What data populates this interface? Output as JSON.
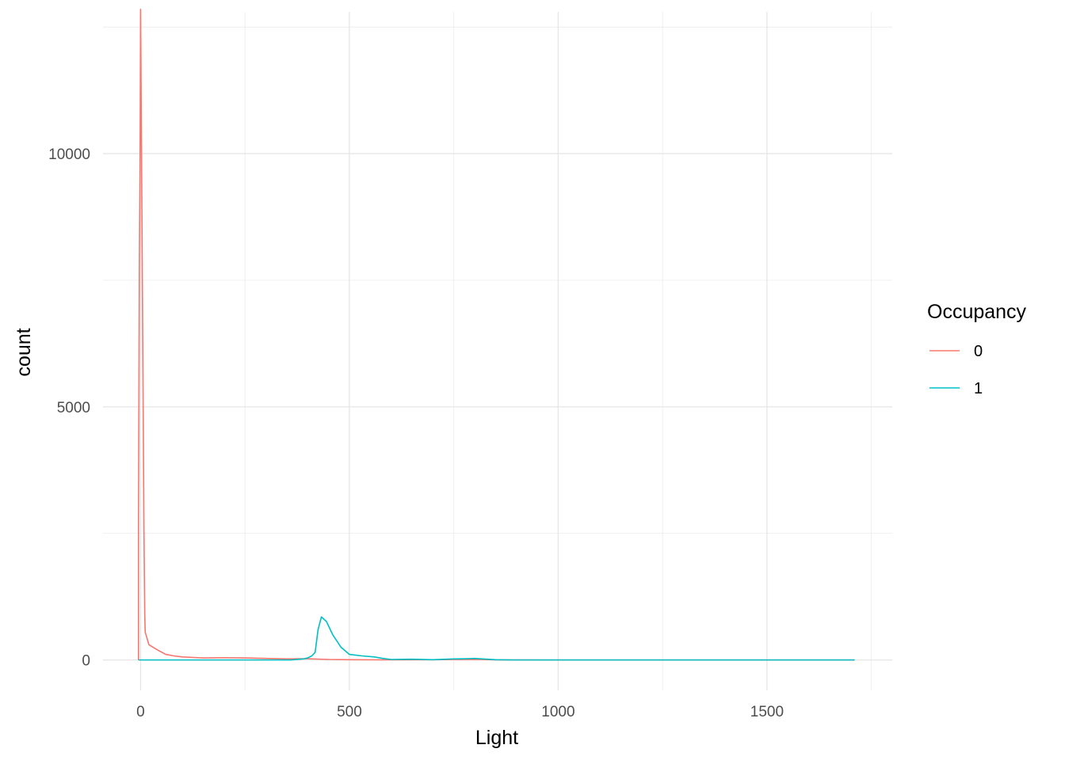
{
  "chart_data": {
    "type": "line",
    "title": "",
    "xlabel": "Light",
    "ylabel": "count",
    "xlim": [
      -90,
      1800
    ],
    "ylim": [
      -600,
      12800
    ],
    "x_ticks": [
      0,
      500,
      1000,
      1500
    ],
    "y_ticks": [
      0,
      5000,
      10000
    ],
    "grid": true,
    "legend": {
      "title": "Occupancy",
      "position": "right"
    },
    "series": [
      {
        "name": "0",
        "color": "#F8766D",
        "points": [
          [
            -5,
            0
          ],
          [
            -5,
            2600
          ],
          [
            -4,
            5100
          ],
          [
            -3,
            7700
          ],
          [
            -1,
            10300
          ],
          [
            0,
            12850
          ],
          [
            2,
            10300
          ],
          [
            4,
            7700
          ],
          [
            6,
            5200
          ],
          [
            8,
            2600
          ],
          [
            10,
            900
          ],
          [
            11,
            550
          ],
          [
            20,
            300
          ],
          [
            40,
            200
          ],
          [
            60,
            110
          ],
          [
            80,
            80
          ],
          [
            100,
            60
          ],
          [
            150,
            40
          ],
          [
            200,
            45
          ],
          [
            250,
            40
          ],
          [
            300,
            30
          ],
          [
            350,
            20
          ],
          [
            400,
            25
          ],
          [
            450,
            10
          ],
          [
            500,
            5
          ],
          [
            600,
            2
          ],
          [
            700,
            5
          ],
          [
            750,
            8
          ],
          [
            800,
            10
          ],
          [
            850,
            2
          ],
          [
            1000,
            0
          ],
          [
            1200,
            0
          ],
          [
            1400,
            0
          ],
          [
            1600,
            0
          ],
          [
            1710,
            0
          ]
        ]
      },
      {
        "name": "1",
        "color": "#00BFC4",
        "points": [
          [
            -5,
            0
          ],
          [
            100,
            0
          ],
          [
            200,
            0
          ],
          [
            300,
            0
          ],
          [
            360,
            0
          ],
          [
            390,
            20
          ],
          [
            400,
            40
          ],
          [
            410,
            80
          ],
          [
            418,
            150
          ],
          [
            425,
            600
          ],
          [
            433,
            850
          ],
          [
            445,
            760
          ],
          [
            460,
            500
          ],
          [
            480,
            250
          ],
          [
            500,
            110
          ],
          [
            530,
            80
          ],
          [
            560,
            60
          ],
          [
            580,
            30
          ],
          [
            600,
            10
          ],
          [
            650,
            15
          ],
          [
            700,
            5
          ],
          [
            750,
            20
          ],
          [
            780,
            25
          ],
          [
            800,
            30
          ],
          [
            850,
            5
          ],
          [
            900,
            0
          ],
          [
            1000,
            0
          ],
          [
            1200,
            0
          ],
          [
            1400,
            0
          ],
          [
            1600,
            0
          ],
          [
            1710,
            0
          ]
        ]
      }
    ]
  }
}
